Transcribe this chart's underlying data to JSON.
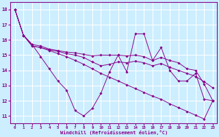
{
  "x": [
    0,
    1,
    2,
    3,
    4,
    5,
    6,
    7,
    8,
    9,
    10,
    11,
    12,
    13,
    14,
    15,
    16,
    17,
    18,
    19,
    20,
    21,
    22,
    23
  ],
  "series1": [
    18.0,
    16.3,
    15.7,
    14.9,
    14.1,
    13.3,
    12.7,
    11.35,
    11.0,
    11.5,
    12.5,
    13.9,
    15.0,
    13.9,
    16.4,
    16.4,
    14.65,
    15.5,
    14.0,
    13.3,
    13.3,
    13.8,
    12.1,
    12.0
  ],
  "series2": [
    18.0,
    16.3,
    15.7,
    15.6,
    15.4,
    15.3,
    15.2,
    15.15,
    15.05,
    14.95,
    15.0,
    15.0,
    15.0,
    14.95,
    15.0,
    14.9,
    14.65,
    14.85,
    14.65,
    14.5,
    14.1,
    14.0,
    13.1,
    12.0
  ],
  "series3": [
    18.0,
    16.3,
    15.6,
    15.5,
    15.35,
    15.25,
    15.1,
    15.0,
    14.85,
    14.55,
    14.3,
    14.4,
    14.55,
    14.5,
    14.6,
    14.5,
    14.3,
    14.45,
    14.2,
    14.0,
    13.8,
    13.6,
    13.25,
    12.85
  ],
  "series4": [
    18.0,
    16.3,
    15.6,
    15.5,
    15.3,
    15.1,
    14.9,
    14.65,
    14.4,
    14.1,
    13.8,
    13.55,
    13.3,
    13.05,
    12.8,
    12.55,
    12.3,
    12.1,
    11.8,
    11.55,
    11.3,
    11.05,
    10.8,
    12.0
  ],
  "line_color": "#880088",
  "bg_color": "#cceeff",
  "grid_color": "#ffffff",
  "xlabel": "Windchill (Refroidissement éolien,°C)",
  "ylim": [
    10.5,
    18.5
  ],
  "xlim": [
    -0.5,
    23.5
  ],
  "yticks": [
    11,
    12,
    13,
    14,
    15,
    16,
    17,
    18
  ],
  "xticks": [
    0,
    1,
    2,
    3,
    4,
    5,
    6,
    7,
    8,
    9,
    10,
    11,
    12,
    13,
    14,
    15,
    16,
    17,
    18,
    19,
    20,
    21,
    22,
    23
  ]
}
